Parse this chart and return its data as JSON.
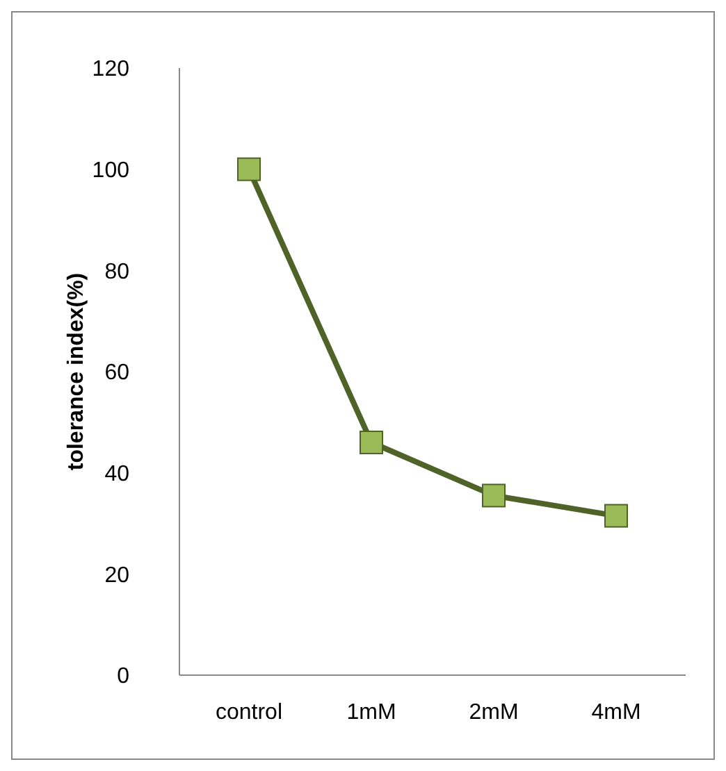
{
  "chart_data": {
    "type": "line",
    "ylabel": "tolerance index(%)",
    "categories": [
      "control",
      "1mM",
      "2mM",
      "4mM"
    ],
    "series": [
      {
        "color": "#4f6228",
        "colors": [
          "#9bbb59",
          "#9bbb59",
          "#9bbb59",
          "#9bbb59"
        ],
        "values": [
          100,
          46,
          35.5,
          31.5
        ]
      }
    ],
    "ylim": [
      0,
      120
    ],
    "yticks": [
      0,
      20,
      40,
      60,
      80,
      100,
      120
    ],
    "grid": false,
    "legend": false,
    "marker": "square",
    "line_style": "solid"
  }
}
